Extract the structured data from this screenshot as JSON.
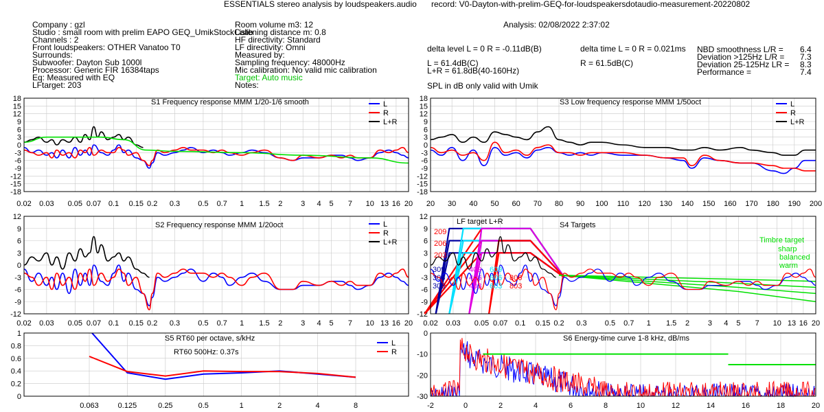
{
  "title": "ESSENTIALS stereo analysis by loudspeakers.audio",
  "record": "record: V0-Dayton-with-prelim-GEQ-for-loudspeakersdotaudio-measurement-20220802",
  "analysis": "Analysis: 02/08/2022 2:37:02",
  "info_left": [
    "Company : gzl",
    "Studio : small room with prelim EAPO GEQ_UmikStockCalib",
    "Channels : 2",
    "Front loudspeakers: OTHER Vanatoo T0",
    "Surrounds:",
    "Subwoofer: Dayton Sub 1000l",
    "Processor: Generic FIR 16384taps",
    "Eq: Measured with EQ",
    "LFtarget: 203"
  ],
  "info_mid": [
    "Room volume m3: 12",
    "Listening distance m: 0.8",
    "HF directivity: Standard",
    "LF directivity: Omni",
    "Measured by:",
    "Sampling frequency: 48000Hz",
    "Mic calibration: No valid mic calibration",
    "Target: Auto music",
    "Notes:"
  ],
  "stats": {
    "delta_level": "delta level L = 0  R = -0.11dB(B)",
    "delta_time": "delta time  L = 0  R = 0.021ms",
    "l_level": "L =      61.4dB(C)",
    "r_level": "R =      61.5dB(C)",
    "lr_level": "L+R = 61.8dB(40-160Hz)",
    "spl_note": "SPL in dB only valid with Umik",
    "metrics": [
      {
        "label": "NBD smoothness L/R =",
        "value": "6.4"
      },
      {
        "label": "Deviation >125Hz L/R =",
        "value": "7.3"
      },
      {
        "label": "Deviation 25-125Hz LR =",
        "value": "8.3"
      },
      {
        "label": "Performance =",
        "value": "7.4"
      }
    ]
  },
  "colors": {
    "L": "#0000ff",
    "R": "#ff0000",
    "LR": "#000000",
    "target": "#00e000",
    "grid": "#c8c8c8",
    "cyan": "#00e0ff",
    "magenta": "#e000e0",
    "navy": "#0000a0"
  },
  "chart_data": [
    {
      "id": "S1",
      "type": "line",
      "title": "S1  Frequency response MMM 1/20-1/6 smooth",
      "xscale": "log",
      "xlim": [
        0.02,
        20
      ],
      "xticks": [
        "0.02",
        "0.03",
        "0.05",
        "0.07",
        "0.1",
        "0.15",
        "0.2",
        "0.3",
        "0.5",
        "0.7",
        "1",
        "1.5",
        "2",
        "3",
        "4",
        "5",
        "7",
        "10",
        "13",
        "16",
        "20"
      ],
      "yticks": [
        "18",
        "15",
        "12",
        "9",
        "6",
        "3",
        "0",
        "-3",
        "-6",
        "-9",
        "-12",
        "-15",
        "-18"
      ],
      "ylim": [
        -18,
        18
      ],
      "legend": [
        "L",
        "R",
        "L+R"
      ],
      "series": [
        {
          "name": "L",
          "x": [
            0.02,
            0.023,
            0.026,
            0.03,
            0.033,
            0.036,
            0.04,
            0.045,
            0.05,
            0.055,
            0.06,
            0.065,
            0.07,
            0.08,
            0.09,
            0.1,
            0.11,
            0.12,
            0.13,
            0.15,
            0.17,
            0.19,
            0.2,
            0.22,
            0.25,
            0.3,
            0.35,
            0.4,
            0.5,
            0.6,
            0.7,
            0.8,
            1,
            1.2,
            1.5,
            2,
            2.5,
            3,
            4,
            5,
            6,
            7,
            8,
            10,
            12,
            14,
            16,
            18,
            20
          ],
          "values": [
            -1,
            -3,
            -2,
            -4,
            -3,
            -5,
            -2,
            -5,
            -1,
            -4,
            -2,
            -4,
            0,
            -3,
            -4,
            -2,
            0,
            -3,
            -2,
            -5,
            -6,
            -9,
            -7,
            -3,
            -4,
            -3,
            -2,
            -1,
            -3,
            -2,
            -3,
            -4,
            -3,
            -2,
            -3,
            -5,
            -6,
            -5,
            -5,
            -4,
            -4,
            -5,
            -6,
            -5,
            -3,
            -2,
            -3,
            -4,
            -5
          ]
        },
        {
          "name": "R",
          "x": [
            0.02,
            0.023,
            0.026,
            0.03,
            0.033,
            0.036,
            0.04,
            0.045,
            0.05,
            0.055,
            0.06,
            0.065,
            0.07,
            0.08,
            0.09,
            0.1,
            0.11,
            0.12,
            0.13,
            0.15,
            0.17,
            0.19,
            0.2,
            0.22,
            0.25,
            0.3,
            0.35,
            0.4,
            0.5,
            0.6,
            0.7,
            0.8,
            1,
            1.2,
            1.5,
            2,
            2.5,
            3,
            4,
            5,
            6,
            7,
            8,
            10,
            12,
            14,
            16,
            18,
            20
          ],
          "values": [
            -2,
            -3,
            -4,
            -3,
            -5,
            -2,
            -4,
            -3,
            -5,
            -2,
            -3,
            -1,
            -4,
            -2,
            -3,
            -3,
            -1,
            -2,
            -4,
            -3,
            -6,
            -8,
            -6,
            -2,
            -3,
            -2,
            -1,
            -2,
            -2,
            -3,
            -2,
            -3,
            -4,
            -3,
            -2,
            -5,
            -6,
            -4,
            -5,
            -4,
            -5,
            -4,
            -5,
            -5,
            -2,
            -3,
            -2,
            -1,
            -3
          ]
        },
        {
          "name": "L+R",
          "x": [
            0.02,
            0.023,
            0.026,
            0.03,
            0.033,
            0.036,
            0.04,
            0.045,
            0.05,
            0.055,
            0.06,
            0.065,
            0.07,
            0.075,
            0.08,
            0.09,
            0.1,
            0.11,
            0.12,
            0.13,
            0.15,
            0.17
          ],
          "values": [
            1,
            2,
            3,
            1,
            2,
            0,
            2,
            1,
            3,
            1,
            4,
            2,
            7,
            3,
            5,
            2,
            3,
            4,
            2,
            3,
            0,
            -1
          ]
        },
        {
          "name": "target",
          "x": [
            0.02,
            0.03,
            0.08,
            0.12,
            0.18,
            0.3,
            1,
            3,
            10,
            20
          ],
          "values": [
            1,
            3,
            3,
            2,
            -2,
            -2.5,
            -3,
            -4,
            -5,
            -7
          ]
        }
      ]
    },
    {
      "id": "S3",
      "type": "line",
      "title": "S3  Low frequency response MMM 1/50oct",
      "xscale": "linear",
      "xlim": [
        20,
        200
      ],
      "xticks": [
        "20",
        "30",
        "40",
        "50",
        "60",
        "70",
        "80",
        "90",
        "100",
        "110",
        "120",
        "130",
        "140",
        "150",
        "160",
        "170",
        "180",
        "190",
        "200"
      ],
      "yticks": [
        "18",
        "15",
        "12",
        "9",
        "6",
        "3",
        "0",
        "-3",
        "-6",
        "-9",
        "-12",
        "-15",
        "-18"
      ],
      "ylim": [
        -18,
        18
      ],
      "legend": [
        "L",
        "R",
        "L+R"
      ],
      "series": [
        {
          "name": "L",
          "x": [
            20,
            25,
            30,
            35,
            40,
            45,
            50,
            55,
            60,
            65,
            70,
            75,
            80,
            85,
            90,
            95,
            100,
            110,
            120,
            130,
            138,
            142,
            148,
            155,
            165,
            170,
            180,
            185,
            190,
            195,
            200
          ],
          "values": [
            -2,
            -4,
            -1,
            -6,
            -2,
            -8,
            -1,
            -4,
            -3,
            -5,
            -2,
            -1,
            -3,
            -4,
            -3,
            -4,
            -3,
            -4,
            -4,
            -5,
            -6,
            -9,
            -5,
            -6,
            -7,
            -7,
            -10,
            -11,
            -9,
            -6,
            -6
          ]
        },
        {
          "name": "R",
          "x": [
            20,
            25,
            30,
            35,
            40,
            45,
            50,
            55,
            60,
            65,
            70,
            75,
            80,
            85,
            90,
            95,
            100,
            110,
            120,
            130,
            138,
            142,
            148,
            155,
            165,
            170,
            180,
            185,
            190,
            195,
            200
          ],
          "values": [
            -1,
            -3,
            -2,
            -4,
            -3,
            -6,
            1,
            -3,
            -2,
            -4,
            -1,
            0,
            -3,
            -3,
            -4,
            -3,
            -3,
            -3,
            -4,
            -5,
            -5,
            -8,
            -4,
            -6,
            -7,
            -7,
            -8,
            -9,
            -9,
            -10,
            -10
          ]
        },
        {
          "name": "L+R",
          "x": [
            20,
            25,
            30,
            35,
            40,
            45,
            50,
            55,
            60,
            65,
            70,
            75,
            80,
            85,
            90,
            95,
            100,
            110,
            120,
            130,
            138,
            142,
            148,
            155,
            165,
            170,
            180,
            185,
            190,
            195,
            200
          ],
          "values": [
            2,
            3,
            4,
            1,
            3,
            1,
            5,
            4,
            3,
            2,
            5,
            7,
            2,
            1,
            0,
            1,
            1,
            0,
            -1,
            -1,
            -2,
            -2,
            -1,
            -2,
            -1,
            -2,
            -3,
            -4,
            -4,
            -2,
            -2
          ]
        }
      ]
    },
    {
      "id": "S2",
      "type": "line",
      "title": "S2  Frequency response MMM 1/20oct",
      "xscale": "log",
      "xlim": [
        0.02,
        20
      ],
      "xticks": [
        "0.02",
        "0.03",
        "0.05",
        "0.07",
        "0.1",
        "0.15",
        "0.2",
        "0.3",
        "0.5",
        "0.7",
        "1",
        "1.5",
        "2",
        "3",
        "4",
        "5",
        "7",
        "10",
        "13",
        "16",
        "20"
      ],
      "yticks": [
        "12",
        "9",
        "6",
        "3",
        "0",
        "-3",
        "-6",
        "-9",
        "-12"
      ],
      "ylim": [
        -12,
        12
      ],
      "legend": [
        "L",
        "R",
        "L+R"
      ],
      "series": [
        {
          "name": "L",
          "x": [
            0.02,
            0.023,
            0.026,
            0.03,
            0.033,
            0.036,
            0.04,
            0.045,
            0.05,
            0.055,
            0.06,
            0.065,
            0.07,
            0.08,
            0.09,
            0.1,
            0.11,
            0.12,
            0.13,
            0.15,
            0.17,
            0.19,
            0.2,
            0.22,
            0.25,
            0.3,
            0.35,
            0.4,
            0.5,
            0.6,
            0.7,
            0.8,
            1,
            1.2,
            1.5,
            2,
            2.5,
            3,
            4,
            5,
            6,
            7,
            8,
            10,
            12,
            14,
            16,
            18,
            20
          ],
          "values": [
            -1,
            -4,
            -2,
            -5,
            -3,
            -6,
            -2,
            -7,
            -1,
            -5,
            -2,
            -5,
            0,
            -4,
            -5,
            -2,
            0,
            -4,
            -2,
            -6,
            -7,
            -10,
            -8,
            -3,
            -4,
            -3,
            -2,
            -1,
            -4,
            -2,
            -3,
            -5,
            -3,
            -2,
            -4,
            -6,
            -6,
            -5,
            -5,
            -4,
            -4,
            -5,
            -6,
            -5,
            -3,
            -2,
            -3,
            -4,
            -5
          ]
        },
        {
          "name": "R",
          "x": [
            0.02,
            0.023,
            0.026,
            0.03,
            0.033,
            0.036,
            0.04,
            0.045,
            0.05,
            0.055,
            0.06,
            0.065,
            0.07,
            0.08,
            0.09,
            0.1,
            0.11,
            0.12,
            0.13,
            0.15,
            0.17,
            0.19,
            0.2,
            0.22,
            0.25,
            0.3,
            0.35,
            0.4,
            0.5,
            0.6,
            0.7,
            0.8,
            1,
            1.2,
            1.5,
            2,
            2.5,
            3,
            4,
            5,
            6,
            7,
            8,
            10,
            12,
            14,
            16,
            18,
            20
          ],
          "values": [
            -2,
            -3,
            -5,
            -3,
            -6,
            -2,
            -5,
            -3,
            -6,
            -2,
            -4,
            -1,
            -5,
            -2,
            -4,
            -3,
            -1,
            -2,
            -5,
            -3,
            -7,
            -11,
            -7,
            -2,
            -3,
            -2,
            -1,
            -2,
            -2,
            -3,
            -2,
            -3,
            -5,
            -3,
            -2,
            -6,
            -6,
            -4,
            -5,
            -4,
            -5,
            -4,
            -5,
            -5,
            -2,
            -3,
            -2,
            -1,
            -3
          ]
        },
        {
          "name": "L+R",
          "x": [
            0.02,
            0.023,
            0.026,
            0.03,
            0.033,
            0.036,
            0.04,
            0.045,
            0.05,
            0.055,
            0.06,
            0.065,
            0.07,
            0.075,
            0.08,
            0.09,
            0.1,
            0.11,
            0.12,
            0.13,
            0.15,
            0.17,
            0.19
          ],
          "values": [
            0,
            2,
            1,
            3,
            0,
            2,
            -1,
            3,
            1,
            4,
            2,
            3,
            7,
            3,
            5,
            1,
            2,
            3,
            1,
            2,
            -1,
            -2,
            -3
          ]
        }
      ]
    },
    {
      "id": "S4",
      "type": "line",
      "title": "S4 Targets",
      "subtitle": "LF target L+R",
      "xscale": "log",
      "xlim": [
        0.02,
        20
      ],
      "xticks": [
        "0.02",
        "0.03",
        "0.05",
        "0.07",
        "0.1",
        "0.15",
        "0.2",
        "0.3",
        "0.5",
        "0.7",
        "1",
        "1.5",
        "2",
        "3",
        "4",
        "5",
        "7",
        "10",
        "13",
        "16",
        "20"
      ],
      "yticks": [
        "12",
        "9",
        "6",
        "3",
        "0",
        "-3",
        "-6",
        "-9",
        "-12"
      ],
      "ylim": [
        -12,
        12
      ],
      "annotations": [
        "209",
        "206",
        "203",
        "309",
        "306",
        "303",
        "409",
        "406",
        "403",
        "609",
        "606",
        "603",
        "806",
        "803"
      ],
      "timbre": [
        "Timbre target",
        "sharp",
        "balanced",
        "warm"
      ]
    },
    {
      "id": "S5",
      "type": "line",
      "title": "S5  RT60 per octave, s/kHz",
      "annotation": "RT60 500Hz: 0.37s",
      "categories": [
        "0.063",
        "0.125",
        "0.25",
        "0.5",
        "1",
        "2",
        "4",
        "8"
      ],
      "yticks": [
        "1",
        "0.8",
        "0.6",
        "0.4",
        "0.2",
        "0"
      ],
      "ylim": [
        0,
        1
      ],
      "legend": [
        "L",
        "R"
      ],
      "series": [
        {
          "name": "L",
          "values": [
            1.05,
            0.37,
            0.27,
            0.35,
            0.37,
            0.4,
            0.35,
            0.3
          ]
        },
        {
          "name": "R",
          "values": [
            0.63,
            0.39,
            0.32,
            0.4,
            0.39,
            0.39,
            0.36,
            0.3
          ]
        }
      ]
    },
    {
      "id": "S6",
      "type": "line",
      "title": "S6  Energy-time curve 1-8 kHz, dB/ms",
      "xlim": [
        -2,
        20
      ],
      "xticks": [
        "-2",
        "0",
        "2",
        "4",
        "6",
        "8",
        "10",
        "12",
        "14",
        "16",
        "18",
        "20"
      ],
      "yticks": [
        "0",
        "-10",
        "-20",
        "-30"
      ],
      "ylim": [
        -30,
        0
      ],
      "target": [
        {
          "x": [
            1,
            15
          ],
          "y": -10
        },
        {
          "x": [
            15,
            20
          ],
          "y": -15
        }
      ]
    }
  ]
}
